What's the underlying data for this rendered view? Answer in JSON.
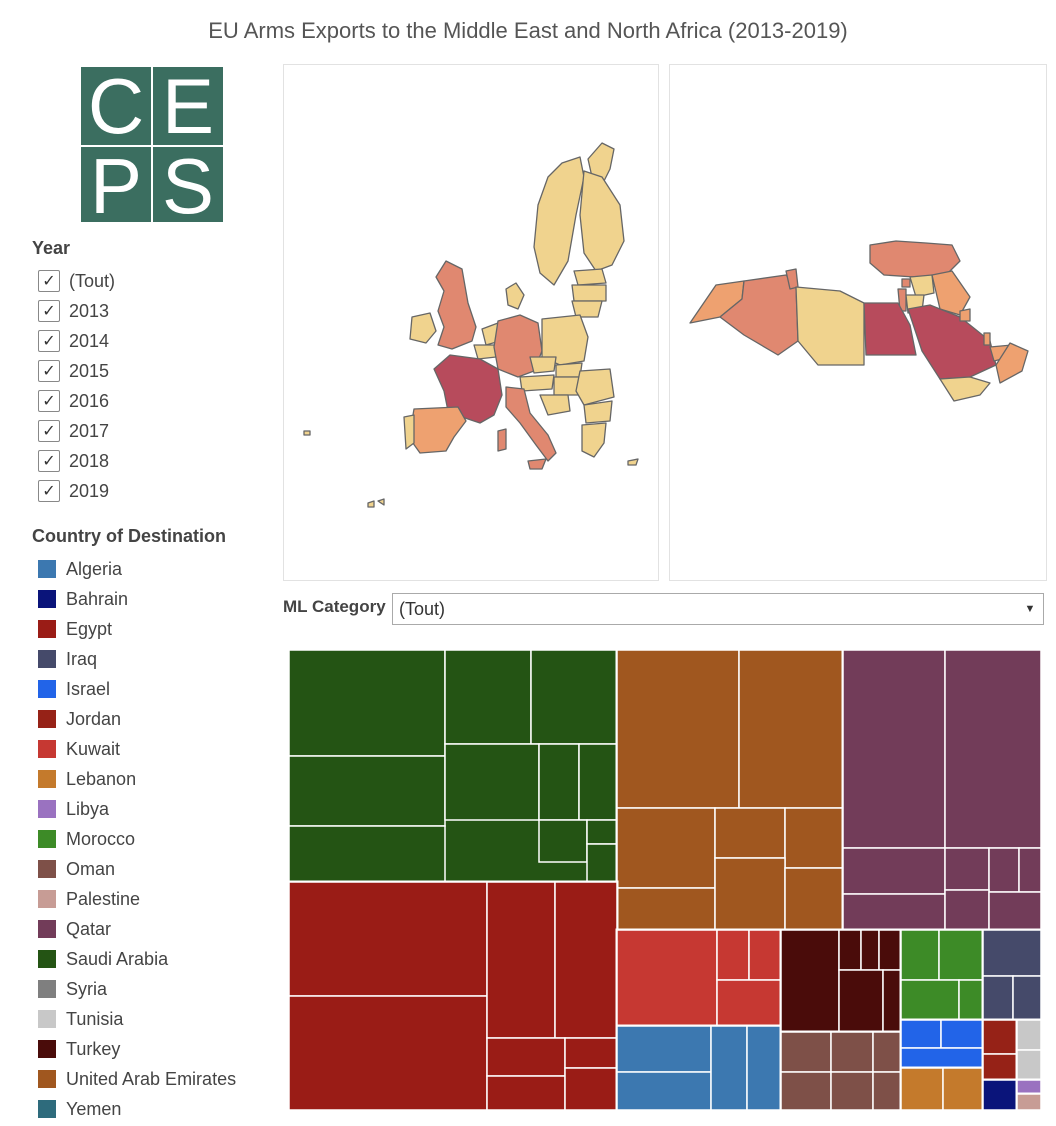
{
  "title": "EU Arms Exports to the Middle East and North Africa (2013-2019)",
  "logo": {
    "letters": [
      "C",
      "E",
      "P",
      "S"
    ]
  },
  "year_filter": {
    "title": "Year",
    "items": [
      {
        "label": "(Tout)",
        "checked": true
      },
      {
        "label": "2013",
        "checked": true
      },
      {
        "label": "2014",
        "checked": true
      },
      {
        "label": "2015",
        "checked": true
      },
      {
        "label": "2016",
        "checked": true
      },
      {
        "label": "2017",
        "checked": true
      },
      {
        "label": "2018",
        "checked": true
      },
      {
        "label": "2019",
        "checked": true
      }
    ]
  },
  "destination_legend": {
    "title": "Country of Destination",
    "items": [
      {
        "label": "Algeria",
        "color": "#3c78b0"
      },
      {
        "label": "Bahrain",
        "color": "#0a147a"
      },
      {
        "label": "Egypt",
        "color": "#9a1c16"
      },
      {
        "label": "Iraq",
        "color": "#454a6a"
      },
      {
        "label": "Israel",
        "color": "#2264e8"
      },
      {
        "label": "Jordan",
        "color": "#962217"
      },
      {
        "label": "Kuwait",
        "color": "#c63832"
      },
      {
        "label": "Lebanon",
        "color": "#c47a2c"
      },
      {
        "label": "Libya",
        "color": "#9a72c0"
      },
      {
        "label": "Morocco",
        "color": "#3d8b27"
      },
      {
        "label": "Oman",
        "color": "#7e5048"
      },
      {
        "label": "Palestine",
        "color": "#c79c95"
      },
      {
        "label": "Qatar",
        "color": "#723c59"
      },
      {
        "label": "Saudi Arabia",
        "color": "#245414"
      },
      {
        "label": "Syria",
        "color": "#7f7f7f"
      },
      {
        "label": "Tunisia",
        "color": "#c8c8c8"
      },
      {
        "label": "Turkey",
        "color": "#4a0c0a"
      },
      {
        "label": "United Arab Emirates",
        "color": "#a0571f"
      },
      {
        "label": "Yemen",
        "color": "#2e6b7c"
      }
    ]
  },
  "ml_filter": {
    "label": "ML Category",
    "value": "(Tout)"
  },
  "choropleth_colors": {
    "low": "#f0d38e",
    "mid": "#eea170",
    "high": "#e08870",
    "max": "#b74b5c",
    "border": "#666666"
  }
}
